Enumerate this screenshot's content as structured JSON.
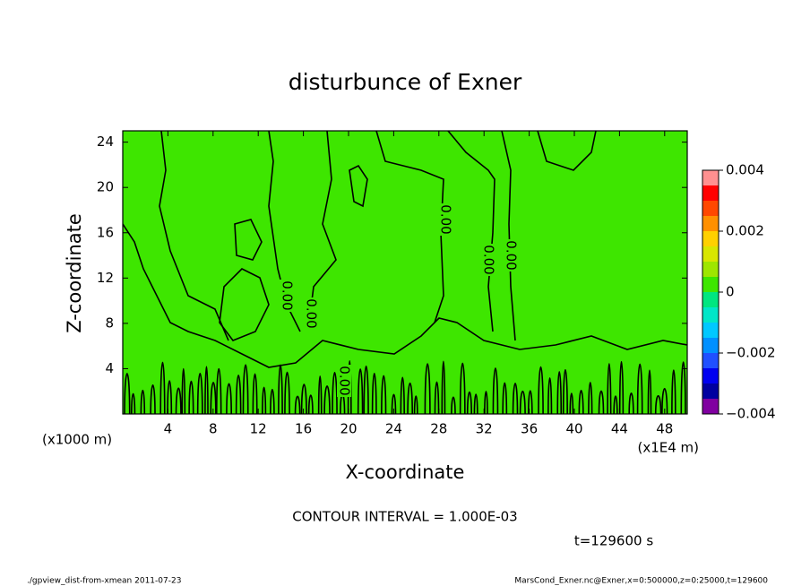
{
  "chart_data": {
    "type": "contour",
    "title": "disturbunce of Exner",
    "x_label": "X-coordinate",
    "y_label": "Z-coordinate",
    "x_unit": "(x1E4 m)",
    "y_unit": "(x1000 m)",
    "xlim": [
      0,
      50
    ],
    "ylim": [
      0,
      25
    ],
    "xticks": [
      4,
      8,
      12,
      16,
      20,
      24,
      28,
      32,
      36,
      40,
      44,
      48
    ],
    "yticks": [
      4,
      8,
      12,
      16,
      20,
      24
    ],
    "fill_color": "#3ee600",
    "contour_color": "#000000",
    "contour_labels": [
      "0.00",
      "0.00",
      "0.00",
      "0.00",
      "0.00",
      "0.00"
    ],
    "contour_interval": "CONTOUR INTERVAL = 1.000E-03",
    "time_label": "t=129600 s",
    "colorbar": {
      "levels": [
        -0.004,
        -0.0035,
        -0.003,
        -0.0025,
        -0.002,
        -0.0015,
        -0.001,
        -0.0005,
        0,
        0.0005,
        0.001,
        0.0015,
        0.002,
        0.0025,
        0.003,
        0.0035,
        0.004
      ],
      "colors": [
        "#8000a0",
        "#0000a0",
        "#0000f0",
        "#2050ff",
        "#0090ff",
        "#00c8ff",
        "#00e6c8",
        "#00e680",
        "#3ee600",
        "#9ee600",
        "#d8e600",
        "#ffd000",
        "#ff9000",
        "#ff4800",
        "#ff0000",
        "#ff9090"
      ],
      "ticks": [
        {
          "value": -0.004,
          "label": "−0.004"
        },
        {
          "value": -0.002,
          "label": "−0.002"
        },
        0,
        0.002,
        0.004
      ]
    },
    "footer_left": "./gpview_dist-from-xmean   2011-07-23",
    "footer_right": "MarsCond_Exner.nc@Exner,x=0:500000,z=0:25000,t=129600"
  }
}
